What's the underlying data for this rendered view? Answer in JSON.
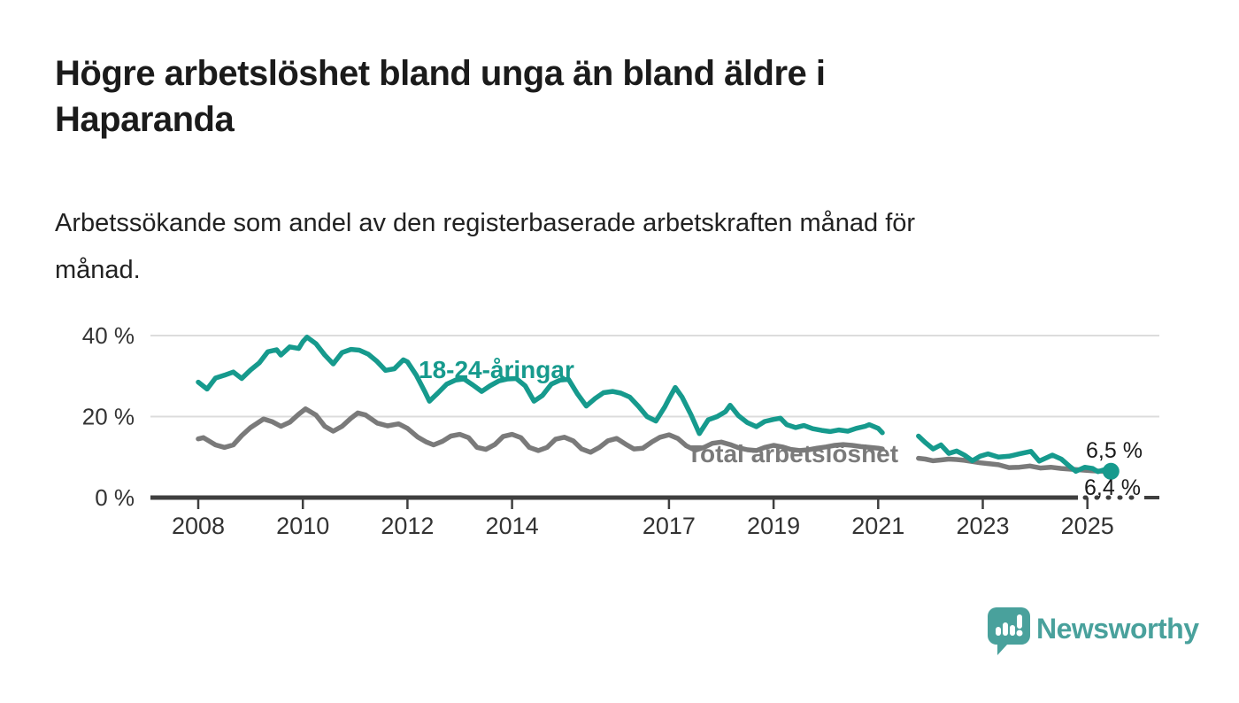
{
  "header": {
    "title_line1": "Högre arbetslöshet bland unga än bland äldre i",
    "title_line2": "Haparanda",
    "subtitle_line1": "Arbetssökande som andel av den registerbaserade arbetskraften månad för",
    "subtitle_line2": "månad."
  },
  "footer": {
    "brand": "Newsworthy",
    "logo_icon": "newsworthy-speech-bubble-bar-chart-icon"
  },
  "colors": {
    "young_series": "#169a8d",
    "total_series": "#7a7a7a",
    "grid": "#dcdcdc",
    "axis": "#3f3f3f",
    "axis_text": "#333333",
    "end_label_text": "#1a1a1a",
    "title_text": "#1b1b1b",
    "brand_teal": "#49a19c",
    "background": "#ffffff"
  },
  "chart_data": {
    "type": "line",
    "unit": "%",
    "grid": "horizontal gridlines at 20% and 40%, thick dark baseline at 0%",
    "legend_position": "inline labels on lines",
    "x_axis": {
      "ticks": [
        2008,
        2010,
        2012,
        2014,
        2017,
        2019,
        2021,
        2023,
        2025
      ],
      "range_start": 2007.1,
      "range_end": 2026.4,
      "note_dotted_axis_end": "axis line dotted between 2025 tick and right edge"
    },
    "y_axis": {
      "ticks": [
        {
          "value": 40,
          "label": "40 %"
        },
        {
          "value": 20,
          "label": "20 %"
        },
        {
          "value": 0,
          "label": "0 %"
        }
      ],
      "ylim": [
        0,
        43
      ]
    },
    "series": [
      {
        "name": "18-24-åringar",
        "color": "#169a8d",
        "end_label": "6,5 %",
        "end_dot": true,
        "segments": [
          [
            [
              2008.0,
              28.5
            ],
            [
              2008.17,
              26.8
            ],
            [
              2008.33,
              29.5
            ],
            [
              2008.5,
              30.2
            ],
            [
              2008.67,
              31.0
            ],
            [
              2008.83,
              29.4
            ],
            [
              2009.0,
              31.5
            ],
            [
              2009.17,
              33.3
            ],
            [
              2009.33,
              36.0
            ],
            [
              2009.5,
              36.5
            ],
            [
              2009.58,
              35.2
            ],
            [
              2009.75,
              37.2
            ],
            [
              2009.92,
              36.8
            ],
            [
              2010.0,
              38.5
            ],
            [
              2010.08,
              39.6
            ],
            [
              2010.25,
              38.0
            ],
            [
              2010.42,
              35.2
            ],
            [
              2010.58,
              33.0
            ],
            [
              2010.75,
              35.8
            ],
            [
              2010.92,
              36.6
            ],
            [
              2011.08,
              36.4
            ],
            [
              2011.25,
              35.4
            ],
            [
              2011.42,
              33.6
            ],
            [
              2011.58,
              31.4
            ],
            [
              2011.75,
              31.8
            ],
            [
              2011.92,
              34.0
            ],
            [
              2012.0,
              33.5
            ],
            [
              2012.17,
              30.2
            ],
            [
              2012.33,
              26.2
            ],
            [
              2012.42,
              23.8
            ],
            [
              2012.58,
              25.8
            ],
            [
              2012.75,
              28.0
            ],
            [
              2012.92,
              29.0
            ],
            [
              2013.08,
              29.3
            ],
            [
              2013.25,
              27.8
            ],
            [
              2013.42,
              26.2
            ],
            [
              2013.58,
              27.6
            ],
            [
              2013.75,
              28.8
            ],
            [
              2013.92,
              29.3
            ],
            [
              2014.08,
              29.4
            ],
            [
              2014.25,
              27.6
            ],
            [
              2014.42,
              23.8
            ],
            [
              2014.58,
              25.2
            ],
            [
              2014.75,
              28.0
            ],
            [
              2014.92,
              29.0
            ],
            [
              2015.08,
              29.2
            ],
            [
              2015.25,
              25.6
            ],
            [
              2015.42,
              22.6
            ],
            [
              2015.58,
              24.4
            ],
            [
              2015.75,
              25.9
            ],
            [
              2015.92,
              26.2
            ],
            [
              2016.08,
              25.8
            ],
            [
              2016.25,
              24.8
            ],
            [
              2016.42,
              22.5
            ],
            [
              2016.58,
              20.0
            ],
            [
              2016.75,
              18.9
            ],
            [
              2016.92,
              22.4
            ],
            [
              2017.0,
              24.4
            ],
            [
              2017.12,
              27.2
            ],
            [
              2017.25,
              24.8
            ],
            [
              2017.42,
              20.5
            ],
            [
              2017.58,
              15.8
            ],
            [
              2017.75,
              19.2
            ],
            [
              2017.92,
              20.0
            ],
            [
              2018.08,
              21.2
            ],
            [
              2018.17,
              22.8
            ],
            [
              2018.33,
              20.2
            ],
            [
              2018.5,
              18.5
            ],
            [
              2018.67,
              17.5
            ],
            [
              2018.83,
              18.8
            ],
            [
              2019.0,
              19.3
            ],
            [
              2019.13,
              19.6
            ],
            [
              2019.25,
              18.0
            ],
            [
              2019.42,
              17.3
            ],
            [
              2019.58,
              17.8
            ],
            [
              2019.75,
              17.0
            ],
            [
              2019.92,
              16.6
            ],
            [
              2020.08,
              16.3
            ],
            [
              2020.25,
              16.7
            ],
            [
              2020.42,
              16.4
            ],
            [
              2020.58,
              17.1
            ],
            [
              2020.75,
              17.6
            ],
            [
              2020.83,
              18.0
            ],
            [
              2021.0,
              17.1
            ],
            [
              2021.08,
              16.0
            ]
          ],
          [
            [
              2021.77,
              15.2
            ],
            [
              2021.9,
              13.6
            ],
            [
              2022.05,
              12.0
            ],
            [
              2022.2,
              13.0
            ],
            [
              2022.35,
              10.9
            ],
            [
              2022.5,
              11.5
            ],
            [
              2022.65,
              10.5
            ],
            [
              2022.8,
              9.1
            ],
            [
              2022.95,
              10.2
            ],
            [
              2023.1,
              10.8
            ],
            [
              2023.3,
              10.0
            ],
            [
              2023.5,
              10.2
            ],
            [
              2023.7,
              10.8
            ],
            [
              2023.92,
              11.4
            ],
            [
              2024.08,
              9.0
            ],
            [
              2024.33,
              10.5
            ],
            [
              2024.5,
              9.5
            ],
            [
              2024.67,
              7.6
            ],
            [
              2024.78,
              6.5
            ],
            [
              2024.95,
              7.5
            ],
            [
              2025.1,
              7.2
            ],
            [
              2025.2,
              6.4
            ],
            [
              2025.33,
              6.9
            ],
            [
              2025.45,
              6.5
            ]
          ]
        ]
      },
      {
        "name": "Total arbetslöshet",
        "color": "#7a7a7a",
        "end_label": "6,4 %",
        "end_dot": false,
        "segments": [
          [
            [
              2008.0,
              14.5
            ],
            [
              2008.1,
              14.8
            ],
            [
              2008.33,
              13.0
            ],
            [
              2008.5,
              12.4
            ],
            [
              2008.67,
              13.0
            ],
            [
              2008.83,
              15.3
            ],
            [
              2009.0,
              17.3
            ],
            [
              2009.25,
              19.4
            ],
            [
              2009.42,
              18.7
            ],
            [
              2009.58,
              17.6
            ],
            [
              2009.75,
              18.6
            ],
            [
              2009.92,
              20.6
            ],
            [
              2010.05,
              21.9
            ],
            [
              2010.25,
              20.4
            ],
            [
              2010.42,
              17.6
            ],
            [
              2010.58,
              16.4
            ],
            [
              2010.75,
              17.6
            ],
            [
              2010.92,
              19.6
            ],
            [
              2011.05,
              20.9
            ],
            [
              2011.2,
              20.4
            ],
            [
              2011.42,
              18.4
            ],
            [
              2011.62,
              17.7
            ],
            [
              2011.83,
              18.2
            ],
            [
              2012.0,
              17.1
            ],
            [
              2012.2,
              14.9
            ],
            [
              2012.35,
              13.8
            ],
            [
              2012.5,
              13.0
            ],
            [
              2012.67,
              13.9
            ],
            [
              2012.83,
              15.2
            ],
            [
              2013.0,
              15.6
            ],
            [
              2013.17,
              14.8
            ],
            [
              2013.33,
              12.4
            ],
            [
              2013.5,
              11.9
            ],
            [
              2013.67,
              13.1
            ],
            [
              2013.83,
              15.1
            ],
            [
              2014.0,
              15.6
            ],
            [
              2014.17,
              14.8
            ],
            [
              2014.33,
              12.4
            ],
            [
              2014.5,
              11.6
            ],
            [
              2014.67,
              12.4
            ],
            [
              2014.83,
              14.4
            ],
            [
              2015.0,
              14.9
            ],
            [
              2015.17,
              14.0
            ],
            [
              2015.33,
              12.0
            ],
            [
              2015.5,
              11.2
            ],
            [
              2015.67,
              12.4
            ],
            [
              2015.83,
              14.0
            ],
            [
              2016.0,
              14.6
            ],
            [
              2016.17,
              13.2
            ],
            [
              2016.33,
              12.0
            ],
            [
              2016.5,
              12.2
            ],
            [
              2016.67,
              13.7
            ],
            [
              2016.83,
              14.9
            ],
            [
              2017.0,
              15.5
            ],
            [
              2017.17,
              14.6
            ],
            [
              2017.33,
              12.8
            ],
            [
              2017.5,
              11.7
            ],
            [
              2017.67,
              12.4
            ],
            [
              2017.83,
              13.4
            ],
            [
              2018.0,
              13.7
            ],
            [
              2018.17,
              13.1
            ],
            [
              2018.33,
              12.3
            ],
            [
              2018.5,
              11.8
            ],
            [
              2018.67,
              11.6
            ],
            [
              2018.83,
              12.4
            ],
            [
              2019.0,
              12.9
            ],
            [
              2019.17,
              12.5
            ],
            [
              2019.33,
              11.9
            ],
            [
              2019.5,
              11.6
            ],
            [
              2019.67,
              11.8
            ],
            [
              2019.83,
              12.2
            ],
            [
              2020.0,
              12.5
            ],
            [
              2020.17,
              12.9
            ],
            [
              2020.33,
              13.1
            ],
            [
              2020.5,
              12.9
            ],
            [
              2020.67,
              12.6
            ],
            [
              2020.83,
              12.4
            ],
            [
              2021.0,
              12.2
            ],
            [
              2021.08,
              12.0
            ]
          ],
          [
            [
              2021.77,
              9.7
            ],
            [
              2021.9,
              9.5
            ],
            [
              2022.05,
              9.1
            ],
            [
              2022.2,
              9.3
            ],
            [
              2022.35,
              9.5
            ],
            [
              2022.5,
              9.4
            ],
            [
              2022.65,
              9.2
            ],
            [
              2022.8,
              8.9
            ],
            [
              2022.95,
              8.6
            ],
            [
              2023.1,
              8.4
            ],
            [
              2023.3,
              8.1
            ],
            [
              2023.5,
              7.4
            ],
            [
              2023.7,
              7.5
            ],
            [
              2023.9,
              7.8
            ],
            [
              2024.1,
              7.3
            ],
            [
              2024.3,
              7.5
            ],
            [
              2024.5,
              7.2
            ],
            [
              2024.7,
              7.0
            ],
            [
              2024.9,
              6.8
            ],
            [
              2025.1,
              6.6
            ],
            [
              2025.3,
              6.5
            ],
            [
              2025.45,
              6.4
            ]
          ]
        ]
      }
    ]
  }
}
